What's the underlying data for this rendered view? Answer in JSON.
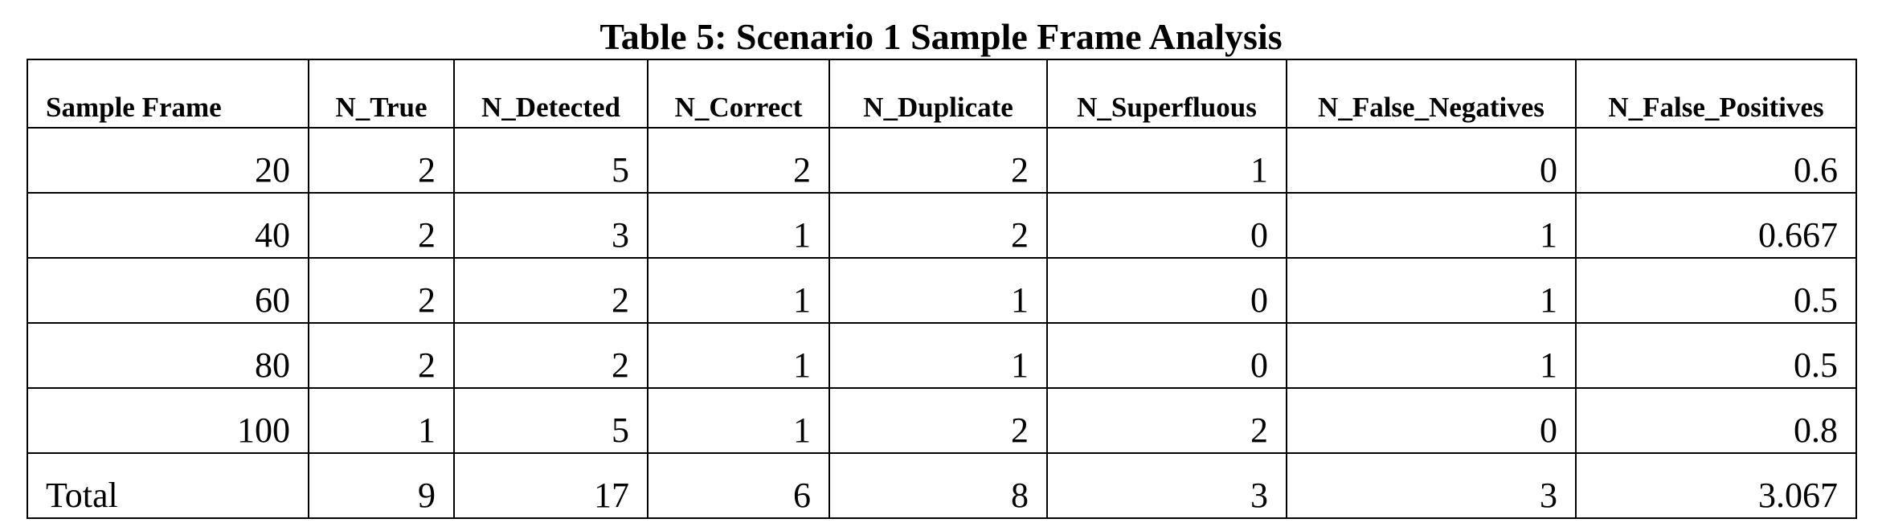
{
  "title": "Table 5: Scenario 1 Sample Frame Analysis",
  "table": {
    "headers": [
      "Sample Frame",
      "N_True",
      "N_Detected",
      "N_Correct",
      "N_Duplicate",
      "N_Superfluous",
      "N_False_Negatives",
      "N_False_Positives"
    ],
    "rows": [
      [
        "20",
        "2",
        "5",
        "2",
        "2",
        "1",
        "0",
        "0.6"
      ],
      [
        "40",
        "2",
        "3",
        "1",
        "2",
        "0",
        "1",
        "0.667"
      ],
      [
        "60",
        "2",
        "2",
        "1",
        "1",
        "0",
        "1",
        "0.5"
      ],
      [
        "80",
        "2",
        "2",
        "1",
        "1",
        "0",
        "1",
        "0.5"
      ],
      [
        "100",
        "1",
        "5",
        "1",
        "2",
        "2",
        "0",
        "0.8"
      ],
      [
        "Total",
        "9",
        "17",
        "6",
        "8",
        "3",
        "3",
        "3.067"
      ]
    ]
  }
}
